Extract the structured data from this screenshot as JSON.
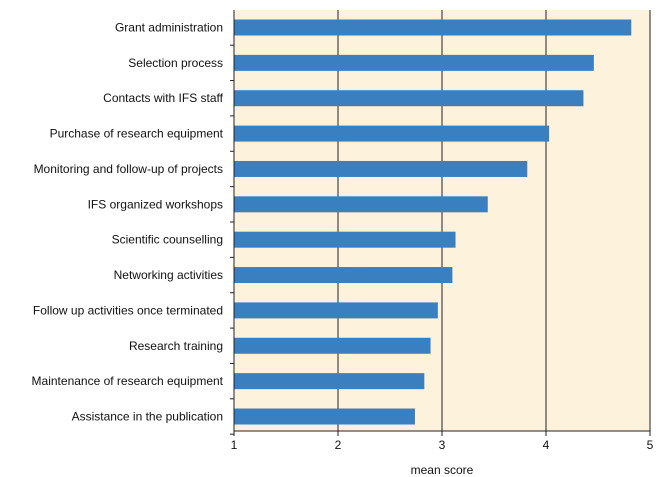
{
  "chart_data": {
    "type": "bar",
    "orientation": "horizontal",
    "categories": [
      "Grant administration",
      "Selection process",
      "Contacts with IFS staff",
      "Purchase of research equipment",
      "Monitoring and follow-up of projects",
      "IFS organized workshops",
      "Scientific counselling",
      "Networking activities",
      "Follow up activities once terminated",
      "Research training",
      "Maintenance of research equipment",
      "Assistance in the publication"
    ],
    "values": [
      4.82,
      4.46,
      4.36,
      4.03,
      3.82,
      3.44,
      3.13,
      3.1,
      2.96,
      2.89,
      2.83,
      2.74
    ],
    "xlabel": "mean score",
    "ylabel": "",
    "title": "",
    "xlim": [
      1,
      5
    ],
    "xticks": [
      "1",
      "2",
      "3",
      "4",
      "5"
    ],
    "grid": "vertical",
    "colors": {
      "bar": "#3a80c1",
      "plot_background": "#fdf3dd",
      "grid": "#222222"
    }
  }
}
